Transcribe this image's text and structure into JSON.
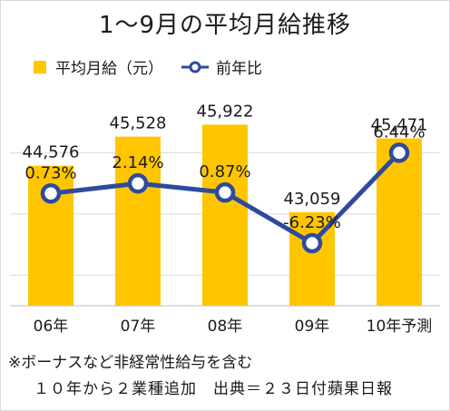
{
  "chart_data": {
    "type": "bar",
    "title": "1～9月の平均月給推移",
    "categories": [
      "06年",
      "07年",
      "08年",
      "09年",
      "10年予測"
    ],
    "series": [
      {
        "name": "平均月給（元）",
        "type": "bar",
        "values": [
          44576,
          45528,
          45922,
          43059,
          45471
        ],
        "labels": [
          "44,576",
          "45,528",
          "45,922",
          "43,059",
          "45,471"
        ]
      },
      {
        "name": "前年比",
        "type": "line",
        "values": [
          0.73,
          2.14,
          0.87,
          -6.23,
          6.44
        ],
        "labels": [
          "0.73%",
          "2.14%",
          "0.87%",
          "-6.23%",
          "6.44%"
        ]
      }
    ],
    "bar_axis_range": [
      40000,
      47000
    ],
    "line_axis_range": [
      -15,
      15
    ],
    "grid": true,
    "legend_placement": "top-left",
    "colors": {
      "bar": "#FFC600",
      "line": "#2E4A9E",
      "grid": "#d9d9d9"
    }
  },
  "footnote": "※ボーナスなど非経常性給与を含む",
  "source_note": "１０年から２業種追加　出典＝２３日付蘋果日報"
}
